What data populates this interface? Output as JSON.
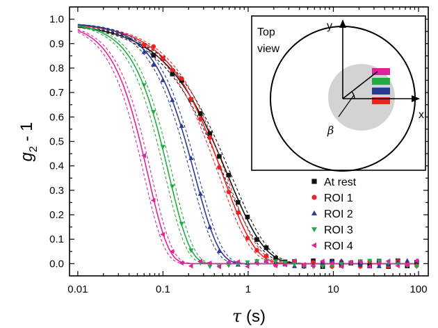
{
  "chart_data": {
    "type": "scatter",
    "xscale": "log",
    "xlim": [
      0.008,
      130
    ],
    "ylim": [
      -0.05,
      1.05
    ],
    "xticks": [
      0.01,
      0.1,
      1,
      10,
      100
    ],
    "xtick_labels": [
      "0.01",
      "0.1",
      "1",
      "10",
      "100"
    ],
    "yticks": [
      0.0,
      0.1,
      0.2,
      0.3,
      0.4,
      0.5,
      0.6,
      0.7,
      0.8,
      0.9,
      1.0
    ],
    "ytick_labels": [
      "0.0",
      "0.1",
      "0.2",
      "0.3",
      "0.4",
      "0.5",
      "0.6",
      "0.7",
      "0.8",
      "0.9",
      "1.0"
    ],
    "ylabel_main": "g",
    "ylabel_sub": "2",
    "ylabel_rest": " - 1",
    "xlabel_symbol": "τ",
    "xlabel_unit": " (s)",
    "grid": false,
    "legend_position": "right",
    "series": [
      {
        "name": "At rest",
        "color": "#111111",
        "marker": "square",
        "tau": 1.15,
        "beta": 1.0
      },
      {
        "name": "ROI 1",
        "color": "#ee2222",
        "marker": "circle",
        "tau": 0.92,
        "beta": 1.15
      },
      {
        "name": "ROI 2",
        "color": "#2b3a92",
        "marker": "triangle-up",
        "tau": 0.37,
        "beta": 1.55
      },
      {
        "name": "ROI 3",
        "color": "#22aa44",
        "marker": "triangle-down",
        "tau": 0.175,
        "beta": 1.75
      },
      {
        "name": "ROI 4",
        "color": "#e0239b",
        "marker": "triangle-left",
        "tau": 0.098,
        "beta": 1.8
      }
    ],
    "inset": {
      "title_line1": "Top",
      "title_line2": "view",
      "x_axis_label": "x",
      "y_axis_label": "y",
      "angle_label": "β",
      "roi_colors": [
        "#e0239b",
        "#22aa44",
        "#2b3a92",
        "#ee2222"
      ]
    }
  }
}
